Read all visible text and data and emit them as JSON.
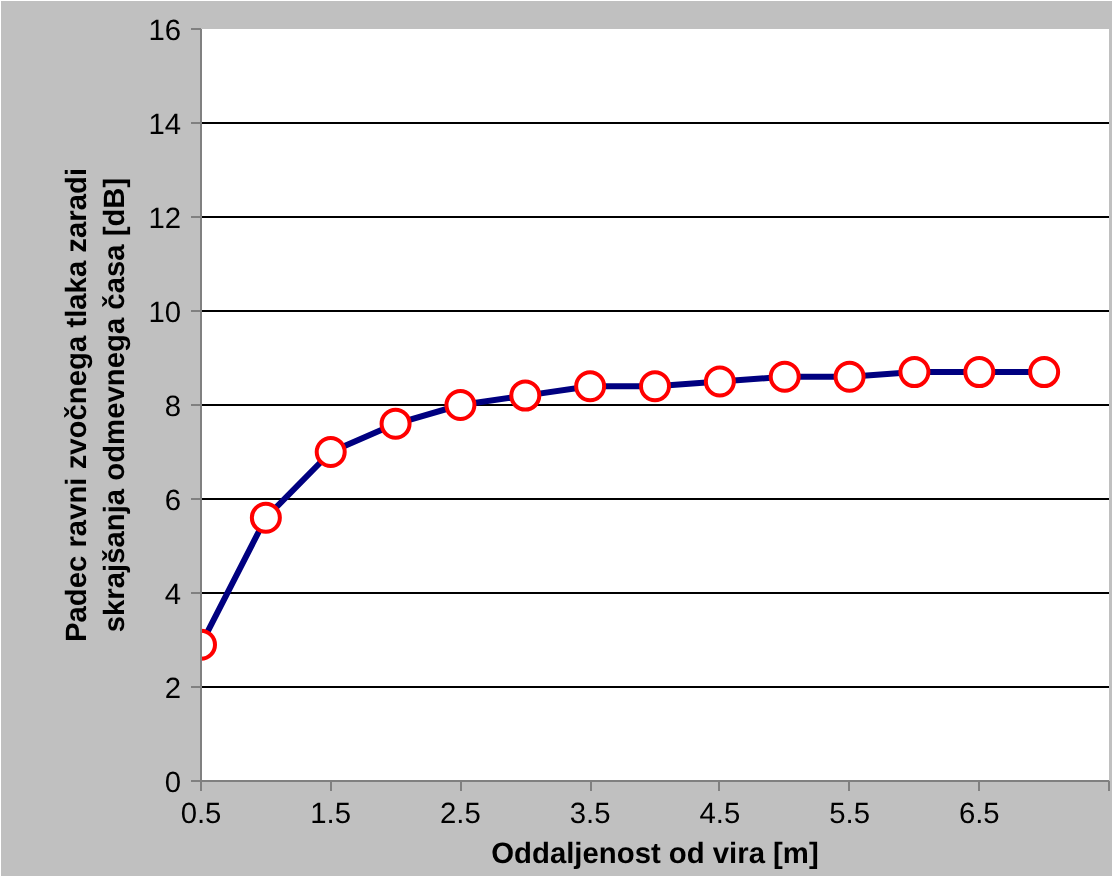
{
  "chart_data": {
    "type": "line",
    "xlabel": "Oddaljenost od vira [m]",
    "ylabel": "Padec ravni zvočnega tlaka zaradi skrajšanja odmevnega časa [dB]",
    "x": [
      0.5,
      1.0,
      1.5,
      2.0,
      2.5,
      3.0,
      3.5,
      4.0,
      4.5,
      5.0,
      5.5,
      6.0,
      6.5,
      7.0
    ],
    "series": [
      {
        "color": "#000080",
        "values": [
          2.9,
          5.6,
          7.0,
          7.6,
          8.0,
          8.2,
          8.4,
          8.4,
          8.5,
          8.6,
          8.6,
          8.7,
          8.7,
          8.7
        ]
      }
    ],
    "xlim": [
      0.5,
      7.5
    ],
    "xticks": [
      0.5,
      1.5,
      2.5,
      3.5,
      4.5,
      5.5,
      6.5,
      {
        "value": 7.5,
        "label": null
      }
    ],
    "ylim": [
      0,
      16
    ],
    "yticks": [
      0,
      2,
      4,
      6,
      8,
      10,
      12,
      14,
      16
    ],
    "grid": "y",
    "marker": "circle",
    "line_style": "solid"
  }
}
